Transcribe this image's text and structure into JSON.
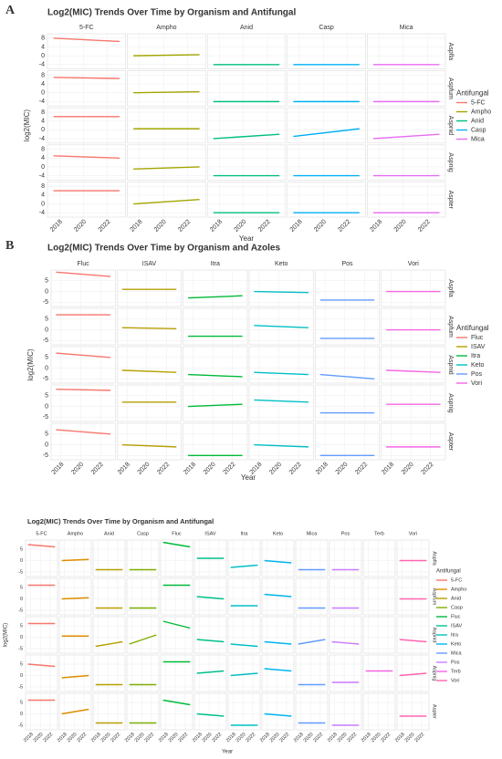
{
  "chart_data": [
    {
      "type": "line",
      "letter": "A",
      "title": "Log2(MIC) Trends Over Time by Organism and Antifungal",
      "x_label": "Year",
      "y_label": "log2(MIC)",
      "legend_title": "Antifungal",
      "rows": [
        "Aspfla",
        "Aspfum",
        "Aspnid",
        "Aspnig",
        "Aspter"
      ],
      "xlim": [
        2017,
        2023.5
      ],
      "xticks": [
        2018,
        2020,
        2022
      ],
      "ylim": [
        -6,
        10
      ],
      "yticks": [
        -4,
        0,
        4,
        8
      ],
      "trend_x": [
        2017.5,
        2023
      ],
      "series": [
        {
          "name": "5-FC",
          "color": "#F8766D",
          "values": [
            [
              8,
              6.5
            ],
            [
              7,
              6.5
            ],
            [
              6,
              6
            ],
            [
              5,
              4
            ],
            [
              6,
              6
            ]
          ]
        },
        {
          "name": "Ampho",
          "color": "#A3A500",
          "values": [
            [
              0,
              0.5
            ],
            [
              0,
              0.5
            ],
            [
              0.5,
              0.5
            ],
            [
              -1,
              0
            ],
            [
              0,
              2
            ]
          ]
        },
        {
          "name": "Anid",
          "color": "#00BF7D",
          "values": [
            [
              -4,
              -4
            ],
            [
              -4,
              -4
            ],
            [
              -4,
              -2
            ],
            [
              -4,
              -4
            ],
            [
              -4,
              -4
            ]
          ]
        },
        {
          "name": "Casp",
          "color": "#00B0F6",
          "values": [
            [
              -4,
              -4
            ],
            [
              -4,
              -4
            ],
            [
              -3,
              0.5
            ],
            [
              -4,
              -4
            ],
            [
              -4,
              -4
            ]
          ]
        },
        {
          "name": "Mica",
          "color": "#E76BF3",
          "values": [
            [
              -4,
              -4
            ],
            [
              -4,
              -4
            ],
            [
              -4,
              -2
            ],
            [
              -4,
              -4
            ],
            [
              -4,
              -4
            ]
          ]
        }
      ]
    },
    {
      "type": "line",
      "letter": "B",
      "title": "Log2(MIC) Trends Over Time by Organism and Azoles",
      "x_label": "Year",
      "y_label": "log2(MIC)",
      "legend_title": "Antifungal",
      "rows": [
        "Aspfla",
        "Aspfum",
        "Aspnid",
        "Aspnig",
        "Aspter"
      ],
      "xlim": [
        2017,
        2023.5
      ],
      "xticks": [
        2018,
        2020,
        2022
      ],
      "ylim": [
        -7,
        10
      ],
      "yticks": [
        -5,
        0,
        5
      ],
      "trend_x": [
        2017.5,
        2023
      ],
      "series": [
        {
          "name": "Fluc",
          "color": "#F8766D",
          "values": [
            [
              9,
              7
            ],
            [
              7,
              7
            ],
            [
              7,
              5
            ],
            [
              8,
              7.5
            ],
            [
              7,
              5
            ]
          ]
        },
        {
          "name": "ISAV",
          "color": "#B79F00",
          "values": [
            [
              1,
              1
            ],
            [
              1,
              0.5
            ],
            [
              -1,
              -2
            ],
            [
              2,
              2
            ],
            [
              0,
              -1
            ]
          ]
        },
        {
          "name": "Itra",
          "color": "#00BA38",
          "values": [
            [
              -3,
              -2
            ],
            [
              -3,
              -3
            ],
            [
              -3,
              -4
            ],
            [
              0,
              1
            ],
            [
              -5,
              -5
            ]
          ]
        },
        {
          "name": "Keto",
          "color": "#00BFC4",
          "values": [
            [
              0,
              -0.5
            ],
            [
              2,
              1
            ],
            [
              -2,
              -3
            ],
            [
              3,
              2
            ],
            [
              0,
              -1
            ]
          ]
        },
        {
          "name": "Pos",
          "color": "#619CFF",
          "values": [
            [
              -4,
              -4
            ],
            [
              -4,
              -4
            ],
            [
              -3,
              -5
            ],
            [
              -3,
              -3
            ],
            [
              -5,
              -5
            ]
          ]
        },
        {
          "name": "Vori",
          "color": "#F564E3",
          "values": [
            [
              0,
              0
            ],
            [
              0,
              0
            ],
            [
              -1,
              -2
            ],
            [
              1,
              1
            ],
            [
              -1,
              -1
            ]
          ]
        }
      ]
    },
    {
      "type": "line",
      "title": "Log2(MIC) Trends Over Time by Organism and Antifungal",
      "x_label": "Year",
      "y_label": "log2(MIC)",
      "legend_title": "Antifungal",
      "rows": [
        "Aspfla",
        "Aspfum",
        "Aspnid",
        "Aspnig",
        "Aspter"
      ],
      "xlim": [
        2017,
        2023.5
      ],
      "xticks": [
        2018,
        2020,
        2022
      ],
      "ylim": [
        -7,
        9
      ],
      "yticks": [
        -5,
        0,
        5
      ],
      "trend_x": [
        2017.5,
        2023
      ],
      "series": [
        {
          "name": "5-FC",
          "color": "#F8766D",
          "values": [
            [
              7,
              6
            ],
            [
              6,
              6
            ],
            [
              6,
              6
            ],
            [
              5,
              4
            ],
            [
              6,
              6
            ]
          ]
        },
        {
          "name": "Ampho",
          "color": "#DE8C00",
          "values": [
            [
              0,
              0.5
            ],
            [
              0,
              0.5
            ],
            [
              0.5,
              0.5
            ],
            [
              -1,
              0
            ],
            [
              0,
              2
            ]
          ]
        },
        {
          "name": "Anid",
          "color": "#B79F00",
          "values": [
            [
              -4,
              -4
            ],
            [
              -4,
              -4
            ],
            [
              -4,
              -2
            ],
            [
              -4,
              -4
            ],
            [
              -4,
              -4
            ]
          ]
        },
        {
          "name": "Casp",
          "color": "#7CAE00",
          "values": [
            [
              -4,
              -4
            ],
            [
              -4,
              -4
            ],
            [
              -3,
              1
            ],
            [
              -4,
              -4
            ],
            [
              -4,
              -4
            ]
          ]
        },
        {
          "name": "Fluc",
          "color": "#00BA38",
          "values": [
            [
              8,
              6
            ],
            [
              6,
              6
            ],
            [
              7,
              4
            ],
            [
              6,
              6
            ],
            [
              6,
              4
            ]
          ]
        },
        {
          "name": "ISAV",
          "color": "#00C08B",
          "values": [
            [
              1,
              1
            ],
            [
              1,
              0
            ],
            [
              -1,
              -2
            ],
            [
              1,
              2
            ],
            [
              0,
              -1
            ]
          ]
        },
        {
          "name": "Itra",
          "color": "#00BFC4",
          "values": [
            [
              -3,
              -2
            ],
            [
              -3,
              -3
            ],
            [
              -3,
              -4
            ],
            [
              0,
              1
            ],
            [
              -5,
              -5
            ]
          ]
        },
        {
          "name": "Keto",
          "color": "#00B4F0",
          "values": [
            [
              0,
              -1
            ],
            [
              2,
              1
            ],
            [
              -2,
              -3
            ],
            [
              3,
              2
            ],
            [
              0,
              -1
            ]
          ]
        },
        {
          "name": "Mica",
          "color": "#619CFF",
          "values": [
            [
              -4,
              -4
            ],
            [
              -4,
              -4
            ],
            [
              -3,
              -1
            ],
            [
              -4,
              -4
            ],
            [
              -4,
              -4
            ]
          ]
        },
        {
          "name": "Pos",
          "color": "#C77CFF",
          "values": [
            [
              -4,
              -4
            ],
            [
              -4,
              -4
            ],
            [
              -2,
              -3
            ],
            [
              -3,
              -3
            ],
            [
              -5,
              -5
            ]
          ]
        },
        {
          "name": "Terb",
          "color": "#F564E3",
          "values": [
            null,
            null,
            null,
            [
              2,
              2
            ],
            null
          ]
        },
        {
          "name": "Vori",
          "color": "#FF64B0",
          "values": [
            [
              0,
              0
            ],
            [
              0,
              0
            ],
            [
              -1,
              -2
            ],
            [
              0,
              1
            ],
            [
              -1,
              -1
            ]
          ]
        }
      ]
    }
  ]
}
